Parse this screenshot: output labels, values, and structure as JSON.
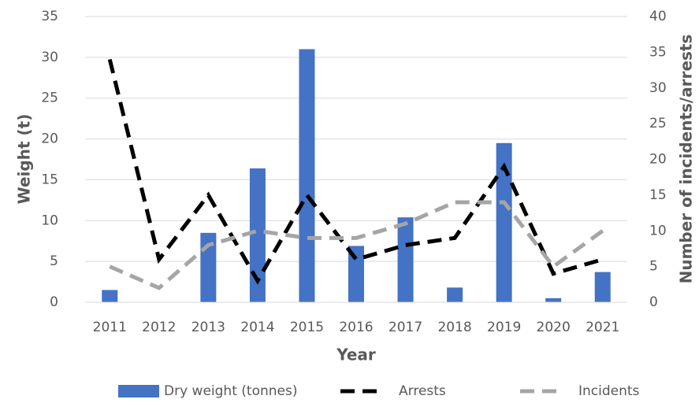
{
  "chart_data": {
    "type": "bar_line",
    "x_label": "Year",
    "y_label": "Weight (t)",
    "y2_label": "Number of incidents/arrests",
    "categories": [
      "2011",
      "2012",
      "2013",
      "2014",
      "2015",
      "2016",
      "2017",
      "2018",
      "2019",
      "2020",
      "2021"
    ],
    "series": [
      {
        "name": "Dry weight (tonnes)",
        "type": "bar",
        "color": "#4472c4",
        "values": [
          1.5,
          0,
          8.5,
          16.4,
          31,
          6.9,
          10.4,
          1.8,
          19.5,
          0.5,
          3.7
        ]
      },
      {
        "name": "Arrests",
        "type": "line",
        "axis": "y2",
        "color": "#000000",
        "values": [
          34,
          6,
          15,
          3,
          15,
          6,
          8,
          9,
          19,
          4,
          6
        ]
      },
      {
        "name": "Incidents",
        "type": "line",
        "axis": "y2",
        "color": "#a5a5a5",
        "values": [
          5,
          2,
          8,
          10,
          9,
          9,
          11,
          14,
          14,
          5,
          10
        ]
      }
    ],
    "ylim": [
      0,
      35
    ],
    "yticks": [
      0,
      5,
      10,
      15,
      20,
      25,
      30,
      35
    ],
    "y2lim": [
      0,
      40
    ],
    "y2ticks": [
      0,
      5,
      10,
      15,
      20,
      25,
      30,
      35,
      40
    ],
    "grid": true,
    "legend": "bottom"
  }
}
